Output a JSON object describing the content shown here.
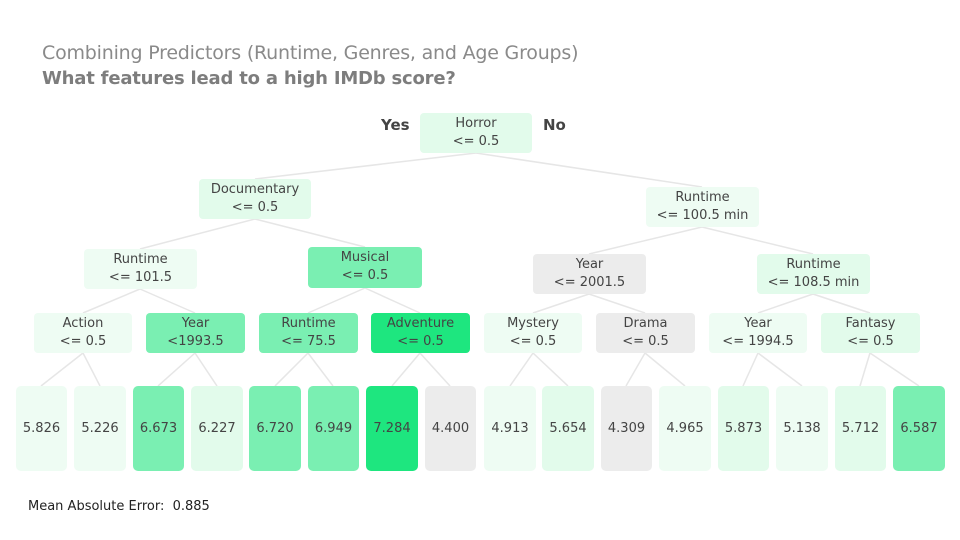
{
  "title": "Combining Predictors (Runtime, Genres, and Age Groups)",
  "subtitle": "What features lead to a high IMDb score?",
  "branch_labels": {
    "yes": "Yes",
    "no": "No"
  },
  "palette": {
    "very_light": "#eefcf3",
    "light": "#e2fbeb",
    "medium": "#7aefb2",
    "strong": "#1ee67f",
    "grey": "#ececec",
    "edge": "#e6e6e6"
  },
  "nodes": [
    {
      "id": "root",
      "line1": "Horror",
      "line2": "<= 0.5",
      "shade": "light"
    },
    {
      "id": "n_doc",
      "line1": "Documentary",
      "line2": "<= 0.5",
      "shade": "light"
    },
    {
      "id": "n_rt1",
      "line1": "Runtime",
      "line2": "<= 100.5 min",
      "shade": "very_light"
    },
    {
      "id": "n_rt2",
      "line1": "Runtime",
      "line2": "<= 101.5",
      "shade": "very_light"
    },
    {
      "id": "n_mus",
      "line1": "Musical",
      "line2": "<= 0.5",
      "shade": "medium"
    },
    {
      "id": "n_yr1",
      "line1": "Year",
      "line2": "<= 2001.5",
      "shade": "grey"
    },
    {
      "id": "n_rt3",
      "line1": "Runtime",
      "line2": "<= 108.5 min",
      "shade": "light"
    },
    {
      "id": "n_act",
      "line1": "Action",
      "line2": "<= 0.5",
      "shade": "very_light"
    },
    {
      "id": "n_yr2",
      "line1": "Year",
      "line2": "<1993.5",
      "shade": "medium"
    },
    {
      "id": "n_rt4",
      "line1": "Runtime",
      "line2": "<= 75.5",
      "shade": "medium"
    },
    {
      "id": "n_adv",
      "line1": "Adventure",
      "line2": "<= 0.5",
      "shade": "strong"
    },
    {
      "id": "n_mys",
      "line1": "Mystery",
      "line2": "<= 0.5",
      "shade": "very_light"
    },
    {
      "id": "n_dra",
      "line1": "Drama",
      "line2": "<= 0.5",
      "shade": "grey"
    },
    {
      "id": "n_yr3",
      "line1": "Year",
      "line2": "<= 1994.5",
      "shade": "very_light"
    },
    {
      "id": "n_fan",
      "line1": "Fantasy",
      "line2": "<= 0.5",
      "shade": "light"
    }
  ],
  "leaves": [
    {
      "value": "5.826",
      "shade": "very_light"
    },
    {
      "value": "5.226",
      "shade": "very_light"
    },
    {
      "value": "6.673",
      "shade": "medium"
    },
    {
      "value": "6.227",
      "shade": "light"
    },
    {
      "value": "6.720",
      "shade": "medium"
    },
    {
      "value": "6.949",
      "shade": "medium"
    },
    {
      "value": "7.284",
      "shade": "strong"
    },
    {
      "value": "4.400",
      "shade": "grey"
    },
    {
      "value": "4.913",
      "shade": "very_light"
    },
    {
      "value": "5.654",
      "shade": "light"
    },
    {
      "value": "4.309",
      "shade": "grey"
    },
    {
      "value": "4.965",
      "shade": "very_light"
    },
    {
      "value": "5.873",
      "shade": "light"
    },
    {
      "value": "5.138",
      "shade": "very_light"
    },
    {
      "value": "5.712",
      "shade": "light"
    },
    {
      "value": "6.587",
      "shade": "medium"
    }
  ],
  "mae": {
    "label": "Mean Absolute Error:",
    "value": "0.885"
  }
}
